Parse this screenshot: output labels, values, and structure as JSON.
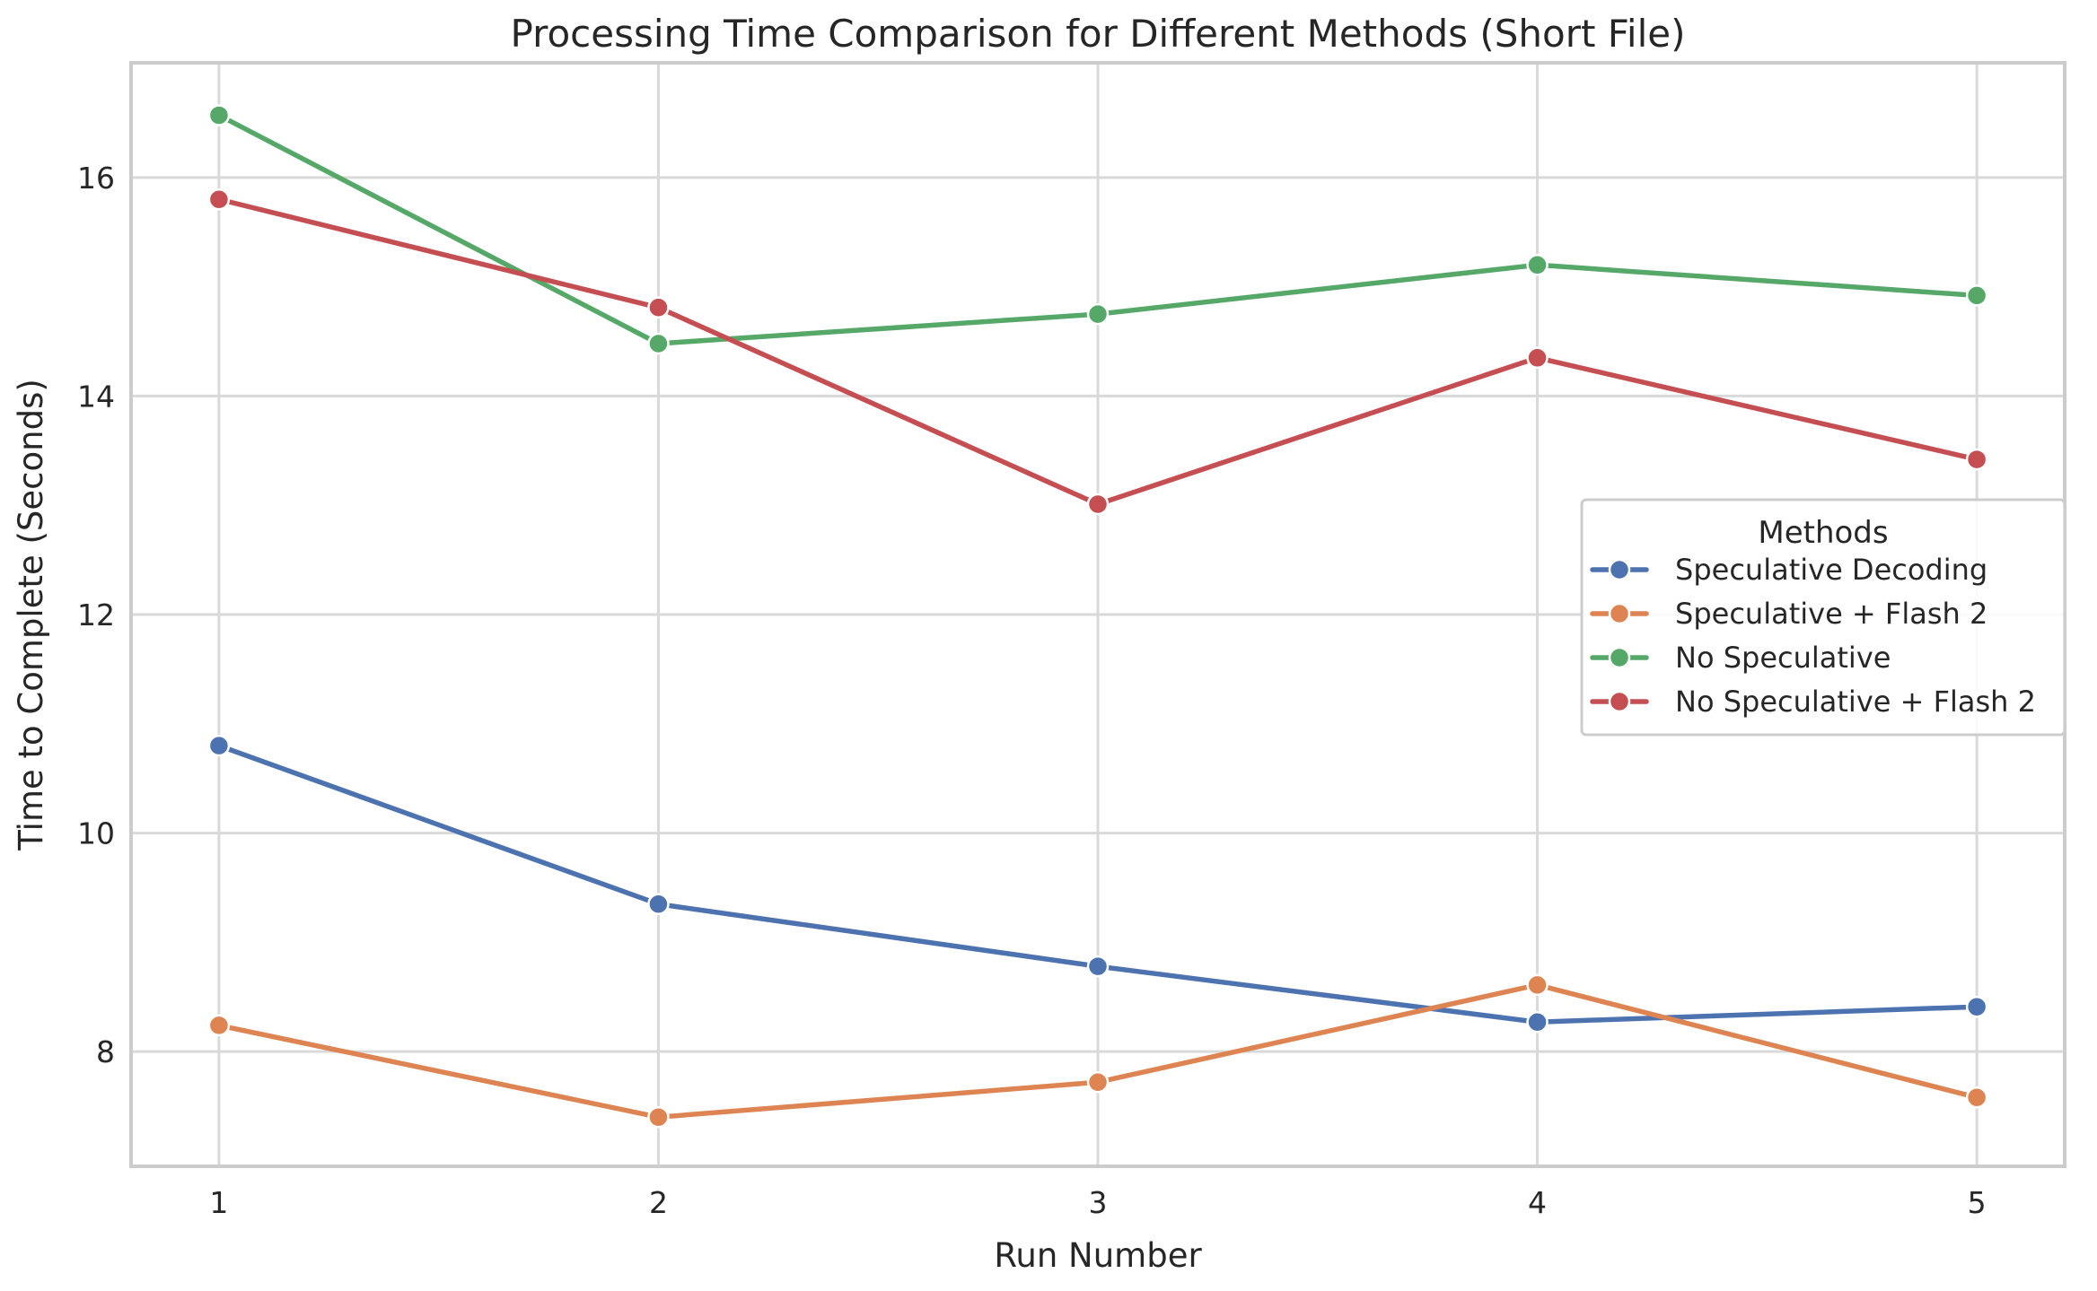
{
  "chart_data": {
    "type": "line",
    "title": "Processing Time Comparison for Different Methods (Short File)",
    "xlabel": "Run Number",
    "ylabel": "Time to Complete (Seconds)",
    "x": [
      1,
      2,
      3,
      4,
      5
    ],
    "xlim": [
      0.8,
      5.2
    ],
    "ylim": [
      6.95,
      17.05
    ],
    "xticks": [
      "1",
      "2",
      "3",
      "4",
      "5"
    ],
    "yticks": [
      8,
      10,
      12,
      14,
      16
    ],
    "grid": true,
    "legend": {
      "title": "Methods",
      "placement": "center-right"
    },
    "series": [
      {
        "name": "Speculative Decoding",
        "color": "#4c72b0",
        "values": [
          10.8,
          9.35,
          8.78,
          8.27,
          8.41
        ]
      },
      {
        "name": "Speculative + Flash 2",
        "color": "#dd8452",
        "values": [
          8.24,
          7.4,
          7.72,
          8.61,
          7.58
        ]
      },
      {
        "name": "No Speculative",
        "color": "#55a868",
        "values": [
          16.57,
          14.48,
          14.75,
          15.2,
          14.92
        ]
      },
      {
        "name": "No Speculative + Flash 2",
        "color": "#c44e52",
        "values": [
          15.8,
          14.81,
          13.01,
          14.35,
          13.42
        ]
      }
    ]
  }
}
